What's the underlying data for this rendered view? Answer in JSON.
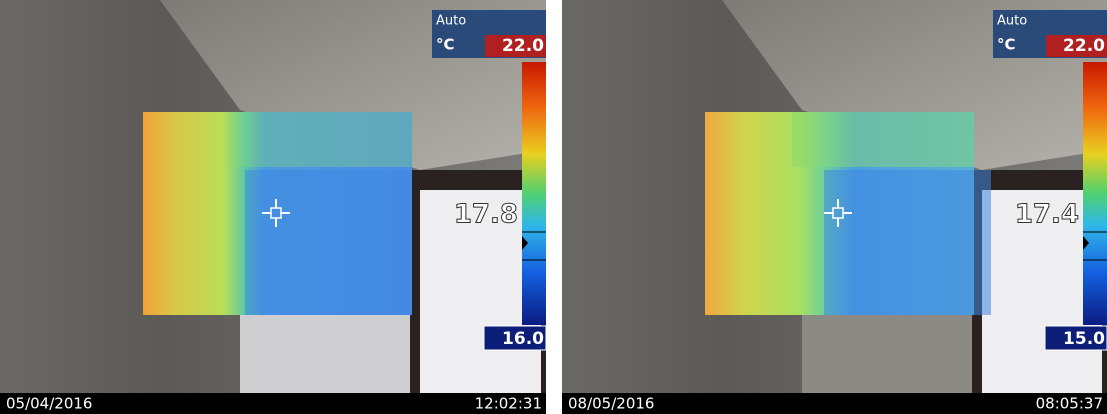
{
  "panels": [
    {
      "mode": "Auto",
      "unit": "°C",
      "max": "22.0",
      "min": "16.0",
      "spot": "17.8",
      "date": "05/04/2016",
      "time": "12:02:31"
    },
    {
      "mode": "Auto",
      "unit": "°C",
      "max": "22.0",
      "min": "15.0",
      "spot": "17.4",
      "date": "08/05/2016",
      "time": "08:05:37"
    }
  ]
}
